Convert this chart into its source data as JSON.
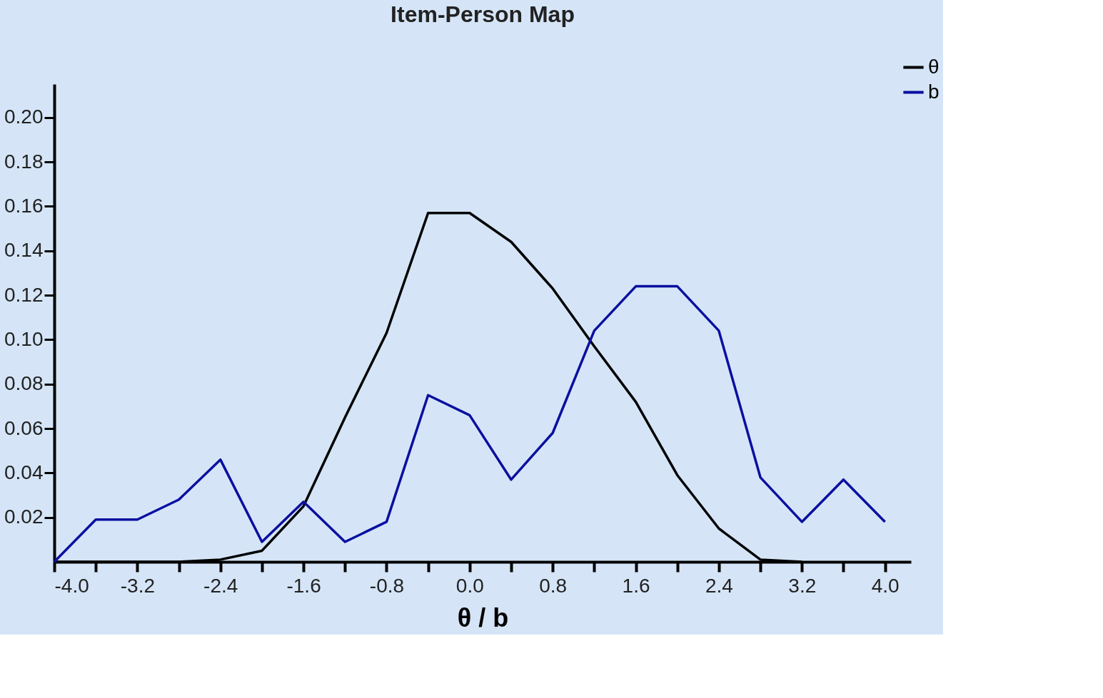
{
  "chart_data": {
    "type": "line",
    "title": "Item-Person Map",
    "xlabel": "θ / b",
    "xlim": [
      -4.0,
      4.25
    ],
    "ylim": [
      0,
      0.215
    ],
    "xticks": [
      {
        "value": -4.0,
        "label": "-4.0"
      },
      {
        "value": -3.6,
        "label": null
      },
      {
        "value": -3.2,
        "label": "-3.2"
      },
      {
        "value": -2.8,
        "label": null
      },
      {
        "value": -2.4,
        "label": "-2.4"
      },
      {
        "value": -2.0,
        "label": null
      },
      {
        "value": -1.6,
        "label": "-1.6"
      },
      {
        "value": -1.2,
        "label": null
      },
      {
        "value": -0.8,
        "label": "-0.8"
      },
      {
        "value": -0.4,
        "label": null
      },
      {
        "value": 0.0,
        "label": "0.0"
      },
      {
        "value": 0.4,
        "label": null
      },
      0.8,
      {
        "value": 1.2,
        "label": null
      },
      1.6,
      {
        "value": 2.0,
        "label": null
      },
      2.4,
      {
        "value": 2.8,
        "label": null
      },
      3.2,
      {
        "value": 3.6,
        "label": null
      },
      {
        "value": 4.0,
        "label": "4.0"
      }
    ],
    "yticks": [
      0.02,
      0.04,
      0.06,
      0.08,
      {
        "value": 0.1,
        "label": "0.10"
      },
      0.12,
      0.14,
      0.16,
      0.18,
      {
        "value": 0.2,
        "label": "0.20"
      }
    ],
    "x": [
      -4.0,
      -3.6,
      -3.2,
      -2.8,
      -2.4,
      -2.0,
      -1.6,
      -1.2,
      -0.8,
      -0.4,
      0.0,
      0.4,
      0.8,
      1.2,
      1.6,
      2.0,
      2.4,
      2.8,
      3.2,
      3.6,
      4.0
    ],
    "series": [
      {
        "name": "θ",
        "color": "#000000",
        "x": [
          -4.0,
          -3.6,
          -3.2,
          -2.8,
          -2.4,
          -2.0,
          -1.6,
          -1.2,
          -0.8,
          -0.4,
          0.0,
          0.4,
          0.8,
          1.2,
          1.6,
          2.0,
          2.4,
          2.8,
          3.2
        ],
        "values": [
          0,
          0,
          0,
          0,
          0.001,
          0.005,
          0.025,
          0.065,
          0.103,
          0.157,
          0.157,
          0.144,
          0.123,
          0.097,
          0.072,
          0.039,
          0.015,
          0.001,
          0
        ]
      },
      {
        "name": "b",
        "color": "#0b0fa0",
        "values": [
          0,
          0.019,
          0.019,
          0.028,
          0.046,
          0.009,
          0.027,
          0.009,
          0.018,
          0.075,
          0.066,
          0.037,
          0.058,
          0.104,
          0.124,
          0.124,
          0.104,
          0.038,
          0.018,
          0.037,
          0.018
        ]
      }
    ],
    "grid": false,
    "legend": "top right",
    "marker": "none",
    "line_style": "solid"
  }
}
